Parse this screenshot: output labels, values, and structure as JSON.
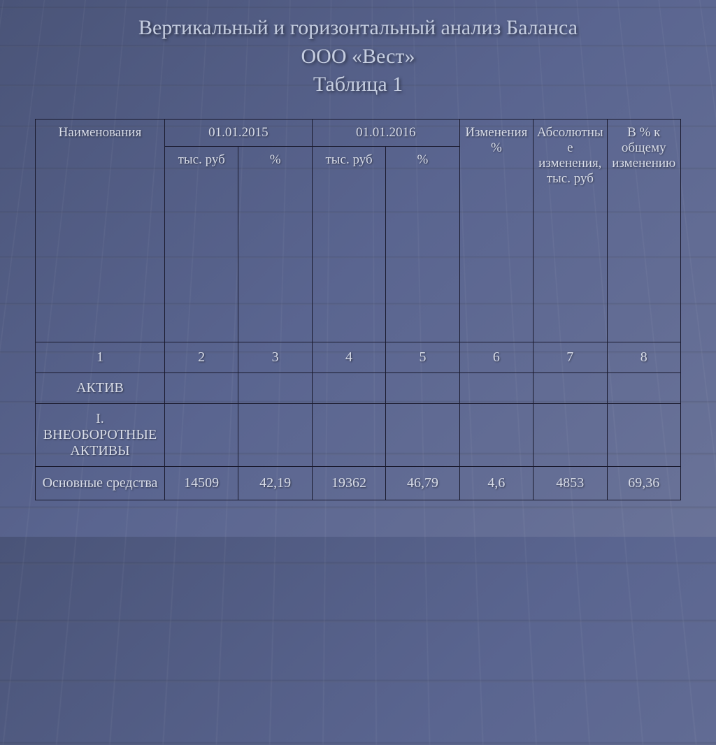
{
  "title_line1": "Вертикальный и горизонтальный анализ Баланса",
  "title_line2": "ООО «Вест»",
  "title_line3": "Таблица 1",
  "header": {
    "name": "Наименования",
    "period1": "01.01.2015",
    "period2": "01.01.2016",
    "sub_rub": "тыс. руб",
    "sub_rub2": "тыс. руб",
    "sub_pct": "%",
    "col6": "Изменения %",
    "col7": "Абсолютные изменения, тыс. руб",
    "col8": "В % к общему изменению"
  },
  "numrow": [
    "1",
    "2",
    "3",
    "4",
    "5",
    "6",
    "7",
    "8"
  ],
  "sections": {
    "aktiv": "АКТИВ",
    "vneob": "I. ВНЕОБОРОТНЫЕ АКТИВЫ"
  },
  "row1": {
    "name": "Основные средства",
    "c2": "14509",
    "c3": "42,19",
    "c4": "19362",
    "c5": "46,79",
    "c6": "4,6",
    "c7": "4853",
    "c8": "69,36"
  },
  "style": {
    "type": "table",
    "background_gradient": [
      "#4a5478",
      "#5a6590",
      "#6a7398"
    ],
    "border_color": "#1a1a2e",
    "text_color": "#d8dce8",
    "title_color": "#c5cde0",
    "title_fontsize": 30,
    "cell_fontsize": 19,
    "font_family": "Times New Roman"
  }
}
